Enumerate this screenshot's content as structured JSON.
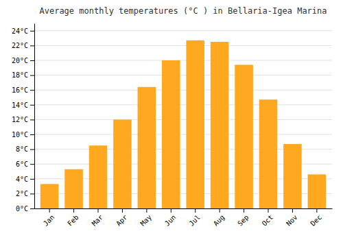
{
  "chart_data": {
    "type": "bar",
    "title": "Average monthly temperatures (°C ) in Bellaria-Igea Marina",
    "categories": [
      "Jan",
      "Feb",
      "Mar",
      "Apr",
      "May",
      "Jun",
      "Jul",
      "Aug",
      "Sep",
      "Oct",
      "Nov",
      "Dec"
    ],
    "values": [
      3.3,
      5.3,
      8.5,
      12.0,
      16.4,
      20.0,
      22.7,
      22.5,
      19.4,
      14.7,
      8.7,
      4.6
    ],
    "color": "#FFA820",
    "ylim": [
      0,
      25
    ],
    "yticks": [
      {
        "value": 0,
        "label": "0°C"
      },
      {
        "value": 2,
        "label": "2°C"
      },
      {
        "value": 4,
        "label": "4°C"
      },
      {
        "value": 6,
        "label": "6°C"
      },
      {
        "value": 8,
        "label": "8°C"
      },
      {
        "value": 10,
        "label": "10°C"
      },
      {
        "value": 12,
        "label": "12°C"
      },
      {
        "value": 14,
        "label": "14°C"
      },
      {
        "value": 16,
        "label": "16°C"
      },
      {
        "value": 18,
        "label": "18°C"
      },
      {
        "value": 20,
        "label": "20°C"
      },
      {
        "value": 22,
        "label": "22°C"
      },
      {
        "value": 24,
        "label": "24°C"
      }
    ],
    "grid": true
  }
}
